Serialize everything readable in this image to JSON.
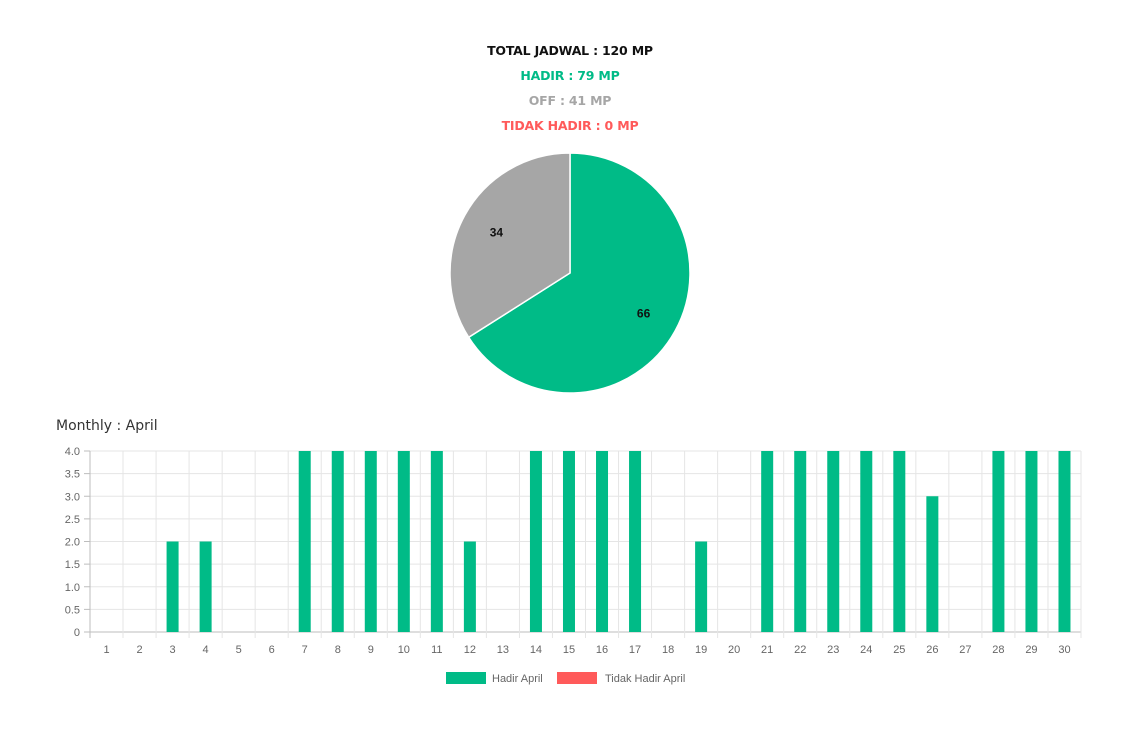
{
  "summary": {
    "total": "TOTAL JADWAL : 120 MP",
    "hadir": "HADIR : 79 MP",
    "off": "OFF : 41 MP",
    "tidak_hadir": "TIDAK HADIR : 0 MP",
    "colors": {
      "total": "#111111",
      "hadir": "#00bb87",
      "off": "#a6a6a6",
      "tidak_hadir": "#ff5a5a"
    }
  },
  "monthly_title": "Monthly : April",
  "chart_data": [
    {
      "type": "pie",
      "labels": [
        "66",
        "34"
      ],
      "values": [
        66,
        34
      ],
      "colors": [
        "#00bb87",
        "#a6a6a6"
      ]
    },
    {
      "type": "bar",
      "categories": [
        "1",
        "2",
        "3",
        "4",
        "5",
        "6",
        "7",
        "8",
        "9",
        "10",
        "11",
        "12",
        "13",
        "14",
        "15",
        "16",
        "17",
        "18",
        "19",
        "20",
        "21",
        "22",
        "23",
        "24",
        "25",
        "26",
        "27",
        "28",
        "29",
        "30"
      ],
      "series": [
        {
          "name": "Hadir April",
          "color": "#00bb87",
          "values": [
            0,
            0,
            2,
            2,
            0,
            0,
            4,
            4,
            4,
            4,
            4,
            2,
            0,
            4,
            4,
            4,
            4,
            0,
            2,
            0,
            4,
            4,
            4,
            4,
            4,
            3,
            0,
            4,
            4,
            4
          ]
        },
        {
          "name": "Tidak Hadir April",
          "color": "#ff5a5a",
          "values": [
            0,
            0,
            0,
            0,
            0,
            0,
            0,
            0,
            0,
            0,
            0,
            0,
            0,
            0,
            0,
            0,
            0,
            0,
            0,
            0,
            0,
            0,
            0,
            0,
            0,
            0,
            0,
            0,
            0,
            0
          ]
        }
      ],
      "ylim": [
        0,
        4
      ],
      "yticks": [
        "0",
        "0.5",
        "1.0",
        "1.5",
        "2.0",
        "2.5",
        "3.0",
        "3.5",
        "4.0"
      ],
      "grid": true,
      "legend": "bottom"
    }
  ]
}
